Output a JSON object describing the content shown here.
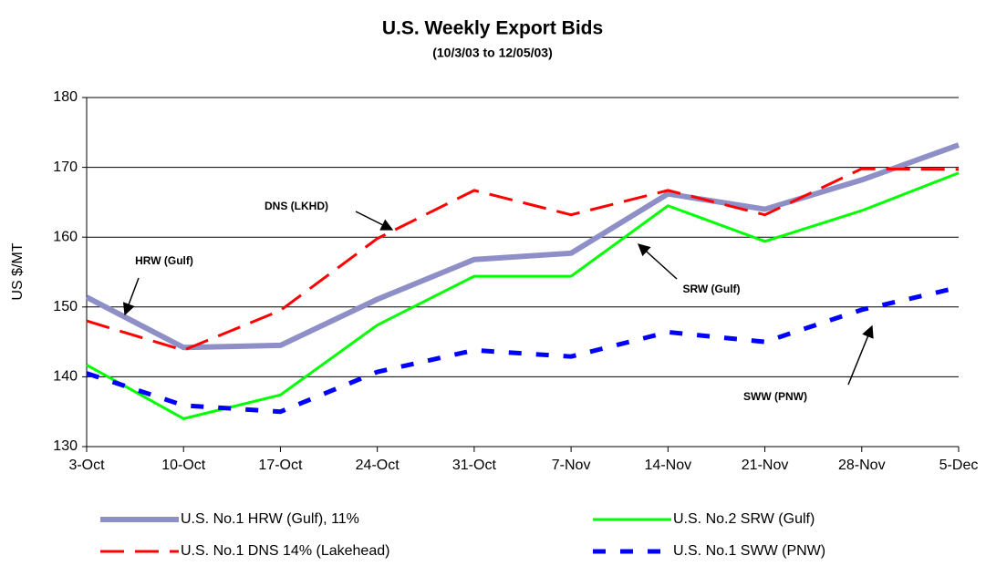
{
  "chart_data": {
    "type": "line",
    "title": "U.S.  Weekly Export Bids",
    "subtitle": "(10/3/03 to 12/05/03)",
    "y_label": "US $/MT",
    "categories": [
      "3-Oct",
      "10-Oct",
      "17-Oct",
      "24-Oct",
      "31-Oct",
      "7-Nov",
      "14-Nov",
      "21-Nov",
      "28-Nov",
      "5-Dec"
    ],
    "series": [
      {
        "name": "U.S. No.1 HRW (Gulf), 11%",
        "color": "#8f8fc8",
        "width": 6,
        "dash": "none",
        "values": [
          151.4,
          144.2,
          144.5,
          151.1,
          156.8,
          157.7,
          166.2,
          164,
          168.2,
          173.2
        ]
      },
      {
        "name": "U.S. No.2 SRW (Gulf)",
        "color": "#00ff00",
        "width": 3,
        "dash": "none",
        "values": [
          141.7,
          134,
          137.4,
          147.4,
          154.4,
          154.4,
          164.5,
          159.4,
          163.8,
          169.2
        ]
      },
      {
        "name": "U.S. No.1 DNS 14% (Lakehead)",
        "color": "#ff0000",
        "width": 3,
        "dash": "26 12",
        "values": [
          148,
          143.8,
          149.5,
          159.8,
          166.7,
          163.2,
          166.7,
          163.2,
          169.8,
          169.7
        ]
      },
      {
        "name": "U.S. No.1 SWW (PNW)",
        "color": "#0000ff",
        "width": 5,
        "dash": "14 16",
        "values": [
          140.5,
          135.9,
          135,
          140.7,
          143.8,
          142.9,
          146.4,
          145,
          149.6,
          152.8
        ]
      }
    ],
    "annotations": [
      "DNS (LKHD)",
      "HRW (Gulf)",
      "SRW (Gulf)",
      "SWW (PNW)"
    ],
    "ylim": [
      130,
      180
    ],
    "yticks": [
      130,
      140,
      150,
      160,
      170,
      180
    ],
    "grid": true
  }
}
